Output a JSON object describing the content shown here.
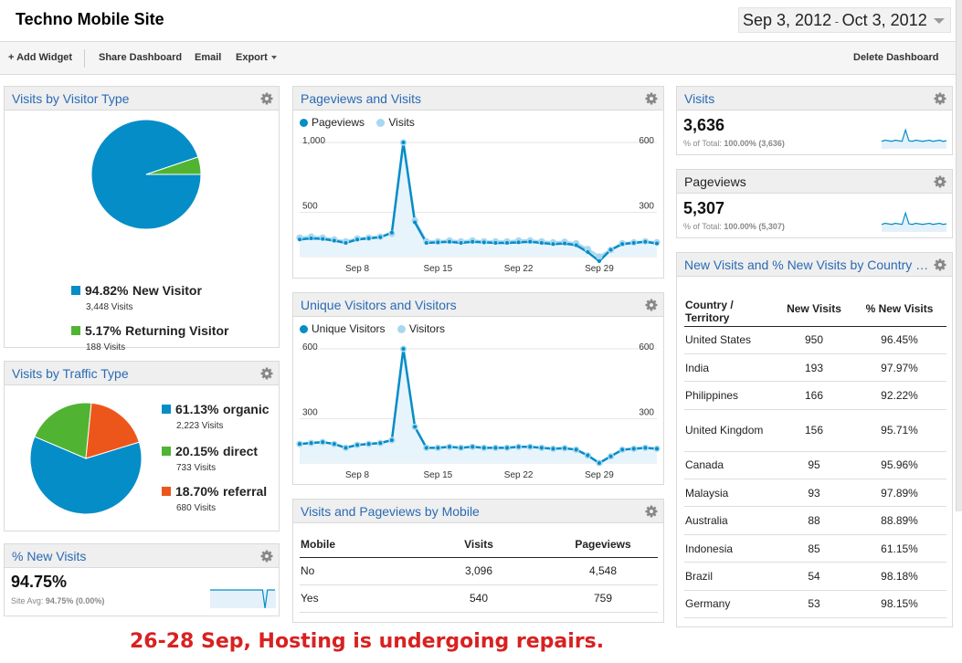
{
  "header": {
    "title": "Techno Mobile Site",
    "date_start": "Sep 3, 2012",
    "date_sep": " - ",
    "date_end": "Oct 3, 2012"
  },
  "toolbar": {
    "add_widget": "+ Add Widget",
    "share": "Share Dashboard",
    "email": "Email",
    "export": "Export",
    "delete": "Delete Dashboard"
  },
  "colors": {
    "blue": "#058dc7",
    "green": "#50b432",
    "orange": "#ed561b",
    "light_blue": "#a8d8f0",
    "link": "#2a6ab4",
    "annotation": "#d92121"
  },
  "visitor_type": {
    "title": "Visits by Visitor Type",
    "items": [
      {
        "pct": "94.82%",
        "label": "New Visitor",
        "visits": "3,448 Visits"
      },
      {
        "pct": "5.17%",
        "label": "Returning Visitor",
        "visits": "188 Visits"
      }
    ]
  },
  "traffic_type": {
    "title": "Visits by Traffic Type",
    "items": [
      {
        "pct": "61.13%",
        "label": "organic",
        "visits": "2,223 Visits"
      },
      {
        "pct": "20.15%",
        "label": "direct",
        "visits": "733 Visits"
      },
      {
        "pct": "18.70%",
        "label": "referral",
        "visits": "680 Visits"
      }
    ]
  },
  "new_visits_pct": {
    "title": "% New Visits",
    "value": "94.75%",
    "sub_prefix": "Site Avg: ",
    "sub_value": "94.75% (0.00%)"
  },
  "pageviews_visits": {
    "title": "Pageviews and Visits",
    "legend": [
      "Pageviews",
      "Visits"
    ]
  },
  "unique_visitors": {
    "title": "Unique Visitors and Visitors",
    "legend": [
      "Unique Visitors",
      "Visitors"
    ]
  },
  "mobile": {
    "title": "Visits and Pageviews by Mobile",
    "headers": [
      "Mobile",
      "Visits",
      "Pageviews"
    ],
    "rows": [
      [
        "No",
        "3,096",
        "4,548"
      ],
      [
        "Yes",
        "540",
        "759"
      ]
    ]
  },
  "visits_metric": {
    "title": "Visits",
    "value": "3,636",
    "sub_prefix": "% of Total: ",
    "sub_value": "100.00% (3,636)"
  },
  "pageviews_metric": {
    "title": "Pageviews",
    "value": "5,307",
    "sub_prefix": "% of Total: ",
    "sub_value": "100.00% (5,307)"
  },
  "country": {
    "title": "New Visits and % New Visits by Country / Territory",
    "headers": [
      "Country / Territory",
      "New Visits",
      "% New Visits"
    ],
    "rows": [
      [
        "United States",
        "950",
        "96.45%"
      ],
      [
        "India",
        "193",
        "97.97%"
      ],
      [
        "Philippines",
        "166",
        "92.22%"
      ],
      [
        "United Kingdom",
        "156",
        "95.71%"
      ],
      [
        "Canada",
        "95",
        "95.96%"
      ],
      [
        "Malaysia",
        "93",
        "97.89%"
      ],
      [
        "Australia",
        "88",
        "88.89%"
      ],
      [
        "Indonesia",
        "85",
        "61.15%"
      ],
      [
        "Brazil",
        "54",
        "98.18%"
      ],
      [
        "Germany",
        "53",
        "98.15%"
      ]
    ]
  },
  "annotation": "26-28 Sep, Hosting is undergoing repairs.",
  "chart_data": [
    {
      "type": "pie",
      "title": "Visits by Visitor Type",
      "categories": [
        "New Visitor",
        "Returning Visitor"
      ],
      "values": [
        94.82,
        5.17
      ]
    },
    {
      "type": "pie",
      "title": "Visits by Traffic Type",
      "categories": [
        "organic",
        "direct",
        "referral"
      ],
      "values": [
        61.13,
        20.15,
        18.7
      ]
    },
    {
      "type": "line",
      "title": "Pageviews and Visits",
      "x_ticks": [
        "Sep 8",
        "Sep 15",
        "Sep 22",
        "Sep 29"
      ],
      "left_ticks": [
        "1,000",
        "500"
      ],
      "right_ticks": [
        "600",
        "300"
      ],
      "ylim_left": [
        0,
        1000
      ],
      "ylim_right": [
        0,
        600
      ],
      "series": [
        {
          "name": "Pageviews",
          "axis": "left",
          "values": [
            150,
            160,
            155,
            140,
            120,
            150,
            160,
            170,
            210,
            1000,
            300,
            120,
            125,
            130,
            120,
            130,
            125,
            120,
            120,
            125,
            130,
            120,
            110,
            115,
            100,
            40,
            -40,
            60,
            110,
            120,
            130,
            115
          ]
        },
        {
          "name": "Visits",
          "axis": "right",
          "values": [
            100,
            105,
            100,
            90,
            80,
            95,
            100,
            105,
            120,
            600,
            190,
            80,
            80,
            85,
            80,
            85,
            80,
            80,
            80,
            85,
            85,
            80,
            75,
            78,
            70,
            40,
            0,
            35,
            70,
            75,
            80,
            75
          ]
        }
      ]
    },
    {
      "type": "line",
      "title": "Unique Visitors and Visitors",
      "x_ticks": [
        "Sep 8",
        "Sep 15",
        "Sep 22",
        "Sep 29"
      ],
      "left_ticks": [
        "600",
        "300"
      ],
      "right_ticks": [
        "600",
        "300"
      ],
      "ylim_left": [
        0,
        600
      ],
      "ylim_right": [
        0,
        600
      ],
      "series": [
        {
          "name": "Unique Visitors",
          "axis": "left",
          "values": [
            100,
            105,
            110,
            100,
            80,
            95,
            100,
            105,
            120,
            600,
            190,
            80,
            80,
            85,
            80,
            85,
            80,
            80,
            80,
            85,
            85,
            80,
            75,
            78,
            70,
            40,
            0,
            35,
            70,
            75,
            80,
            75
          ]
        },
        {
          "name": "Visitors",
          "axis": "right",
          "values": [
            100,
            105,
            110,
            100,
            80,
            95,
            100,
            105,
            120,
            600,
            190,
            80,
            80,
            85,
            80,
            85,
            80,
            80,
            80,
            85,
            85,
            80,
            75,
            78,
            70,
            40,
            0,
            35,
            70,
            75,
            80,
            75
          ]
        }
      ]
    },
    {
      "type": "line",
      "title": "Visits sparkline",
      "values": [
        10,
        12,
        11,
        10,
        12,
        11,
        10,
        30,
        11,
        10,
        12,
        11,
        10,
        11,
        12,
        10,
        11,
        12,
        10,
        11
      ]
    },
    {
      "type": "line",
      "title": "Pageviews sparkline",
      "values": [
        10,
        12,
        11,
        10,
        12,
        11,
        10,
        30,
        11,
        10,
        12,
        11,
        10,
        11,
        12,
        10,
        11,
        12,
        10,
        11
      ]
    },
    {
      "type": "line",
      "title": "% New Visits sparkline",
      "values": [
        20,
        20,
        20,
        20,
        20,
        20,
        20,
        20,
        20,
        20,
        20,
        20,
        20,
        20,
        20,
        20,
        20,
        20,
        20,
        20,
        20,
        20,
        -5,
        20,
        20,
        20,
        20
      ]
    }
  ]
}
